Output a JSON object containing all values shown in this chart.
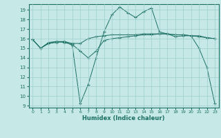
{
  "xlabel": "Humidex (Indice chaleur)",
  "xlim": [
    -0.5,
    23.5
  ],
  "ylim": [
    8.8,
    19.6
  ],
  "yticks": [
    9,
    10,
    11,
    12,
    13,
    14,
    15,
    16,
    17,
    18,
    19
  ],
  "xticks": [
    0,
    1,
    2,
    3,
    4,
    5,
    6,
    7,
    8,
    9,
    10,
    11,
    12,
    13,
    14,
    15,
    16,
    17,
    18,
    19,
    20,
    21,
    22,
    23
  ],
  "bg_color": "#c6e8e6",
  "grid_color": "#9ecece",
  "line_color": "#1a6e62",
  "line1_x": [
    0,
    1,
    2,
    3,
    4,
    5,
    6,
    7,
    8,
    9,
    10,
    11,
    12,
    13,
    14,
    15,
    16,
    17,
    18,
    19,
    20,
    21,
    22,
    23
  ],
  "line1_y": [
    15.9,
    15.0,
    15.6,
    15.7,
    15.7,
    15.3,
    9.2,
    11.2,
    14.0,
    16.7,
    18.5,
    19.3,
    18.7,
    18.2,
    18.8,
    19.2,
    16.7,
    16.5,
    16.2,
    16.3,
    16.3,
    15.0,
    13.0,
    9.2
  ],
  "line2_x": [
    0,
    1,
    2,
    3,
    4,
    5,
    6,
    7,
    8,
    9,
    10,
    11,
    12,
    13,
    14,
    15,
    16,
    17,
    18,
    19,
    20,
    21,
    22,
    23
  ],
  "line2_y": [
    15.9,
    15.0,
    15.5,
    15.7,
    15.6,
    15.4,
    14.7,
    14.0,
    14.7,
    15.8,
    16.0,
    16.1,
    16.2,
    16.3,
    16.4,
    16.4,
    16.5,
    16.5,
    16.4,
    16.4,
    16.3,
    16.3,
    16.1,
    16.0
  ],
  "line3_x": [
    0,
    1,
    2,
    3,
    4,
    5,
    6,
    7,
    8,
    9,
    10,
    11,
    12,
    13,
    14,
    15,
    16,
    17,
    18,
    19,
    20,
    21,
    22,
    23
  ],
  "line3_y": [
    15.9,
    15.0,
    15.5,
    15.6,
    15.7,
    15.5,
    15.5,
    16.0,
    16.2,
    16.3,
    16.4,
    16.4,
    16.4,
    16.4,
    16.5,
    16.5,
    16.5,
    16.5,
    16.4,
    16.4,
    16.3,
    16.2,
    16.1,
    16.0
  ]
}
